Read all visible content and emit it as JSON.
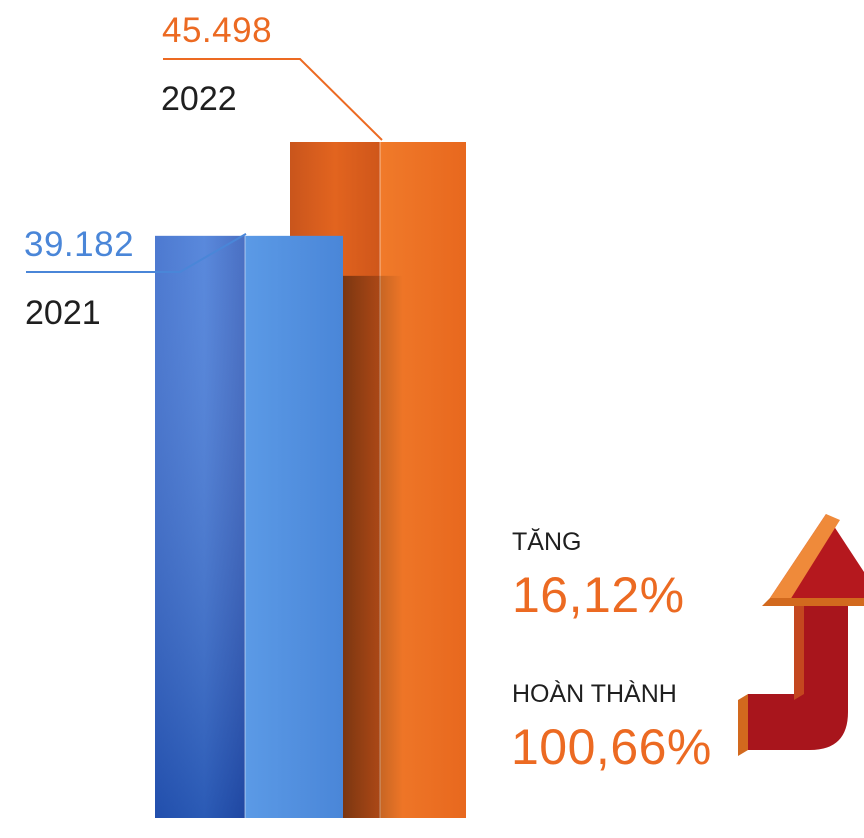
{
  "chart_data": {
    "type": "bar",
    "categories": [
      "2021",
      "2022"
    ],
    "values": [
      39182,
      45498
    ],
    "value_labels": [
      "39.182",
      "45.498"
    ],
    "colors": [
      "#4a86d8",
      "#ec6a22"
    ],
    "annotations": [
      {
        "label": "TĂNG",
        "value": "16,12%"
      },
      {
        "label": "HOÀN THÀNH",
        "value": "100,66%"
      }
    ],
    "arrow_colors": {
      "front": "#a8151c",
      "side": "#d2691e",
      "head_top": "#ef8a3a"
    },
    "grid": false
  }
}
